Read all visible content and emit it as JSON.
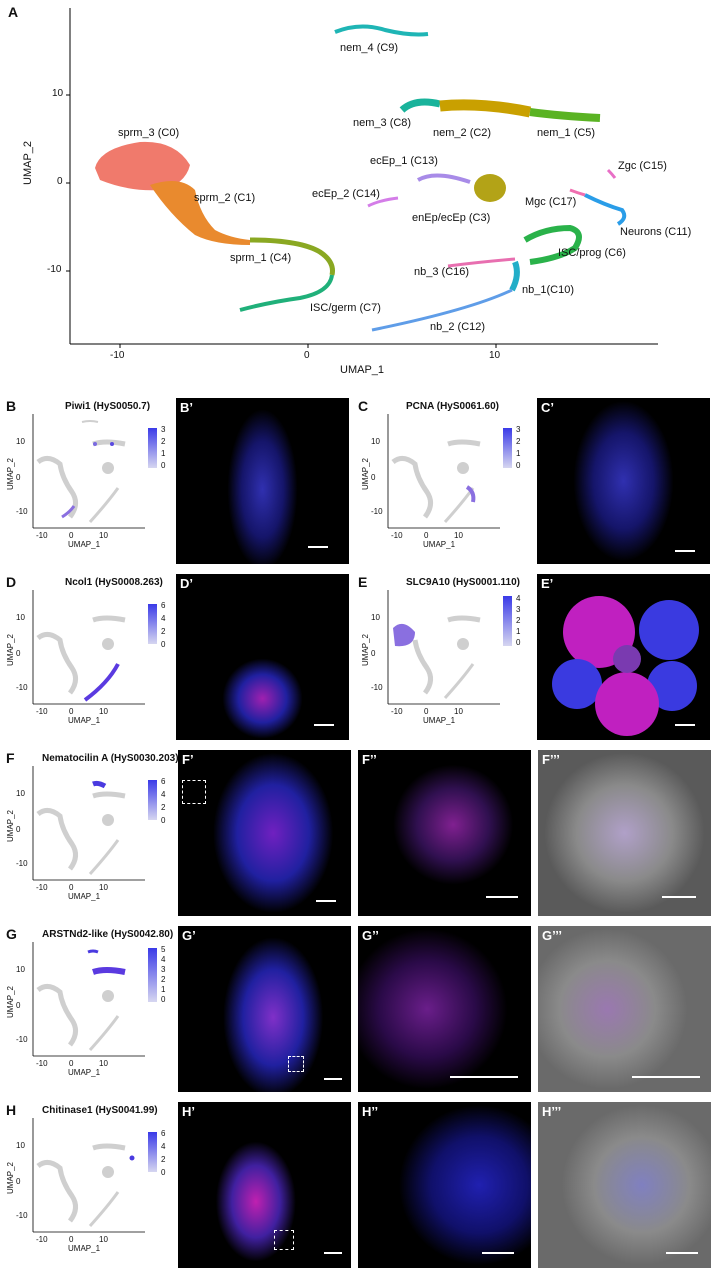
{
  "panel_a": {
    "letter": "A",
    "xlabel": "UMAP_1",
    "ylabel": "UMAP_2",
    "xticks": [
      "-10",
      "0",
      "10"
    ],
    "yticks": [
      "10",
      "0",
      "-10"
    ],
    "clusters": [
      {
        "label": "nem_4 (C9)",
        "color": "#1fb5b5"
      },
      {
        "label": "nem_3 (C8)",
        "color": "#19b39b"
      },
      {
        "label": "nem_2 (C2)",
        "color": "#c9a000"
      },
      {
        "label": "nem_1 (C5)",
        "color": "#5ab323"
      },
      {
        "label": "sprm_3 (C0)",
        "color": "#f07a6c"
      },
      {
        "label": "sprm_2 (C1)",
        "color": "#e98a2e"
      },
      {
        "label": "ecEp_1 (C13)",
        "color": "#a88be8"
      },
      {
        "label": "ecEp_2 (C14)",
        "color": "#d47de8"
      },
      {
        "label": "enEp/ecEp (C3)",
        "color": "#b3a317"
      },
      {
        "label": "Zgc (C15)",
        "color": "#e86fc6"
      },
      {
        "label": "Mgc (C17)",
        "color": "#f06fb0"
      },
      {
        "label": "Neurons (C11)",
        "color": "#2a9de8"
      },
      {
        "label": "sprm_1 (C4)",
        "color": "#8aa822"
      },
      {
        "label": "ISC/prog (C6)",
        "color": "#2ab24a"
      },
      {
        "label": "nb_3 (C16)",
        "color": "#e86fb0"
      },
      {
        "label": "nb_1(C10)",
        "color": "#23aec8"
      },
      {
        "label": "ISC/germ (C7)",
        "color": "#20b07a"
      },
      {
        "label": "nb_2 (C12)",
        "color": "#5f9de8"
      }
    ]
  },
  "mini_axes": {
    "xlabel": "UMAP_1",
    "ylabel": "UMAP_2",
    "xticks": [
      "-10",
      "0",
      "10"
    ],
    "yticks": [
      "10",
      "0",
      "-10"
    ]
  },
  "panels": [
    {
      "letter": "B",
      "title": "Piwi1 (HyS0050.7)",
      "scale": [
        "3",
        "2",
        "1",
        "0"
      ],
      "img_label": "B’"
    },
    {
      "letter": "C",
      "title": "PCNA (HyS0061.60)",
      "scale": [
        "3",
        "2",
        "1",
        "0"
      ],
      "img_label": "C’"
    },
    {
      "letter": "D",
      "title": "Ncol1 (HyS0008.263)",
      "scale": [
        "6",
        "4",
        "2",
        "0"
      ],
      "img_label": "D’"
    },
    {
      "letter": "E",
      "title": "SLC9A10 (HyS0001.110)",
      "scale": [
        "4",
        "3",
        "2",
        "1",
        "0"
      ],
      "img_label": "E’"
    },
    {
      "letter": "F",
      "title": "Nematocilin A (HyS0030.203)",
      "scale": [
        "6",
        "4",
        "2",
        "0"
      ],
      "img_labels": [
        "F’",
        "F’’",
        "F’’’"
      ]
    },
    {
      "letter": "G",
      "title": "ARSTNd2-like (HyS0042.80)",
      "scale": [
        "5",
        "4",
        "3",
        "2",
        "1",
        "0"
      ],
      "img_labels": [
        "G’",
        "G’’",
        "G’’’"
      ]
    },
    {
      "letter": "H",
      "title": "Chitinase1 (HyS0041.99)",
      "scale": [
        "6",
        "4",
        "2",
        "0"
      ],
      "img_labels": [
        "H’",
        "H’’",
        "H’’’"
      ]
    }
  ]
}
